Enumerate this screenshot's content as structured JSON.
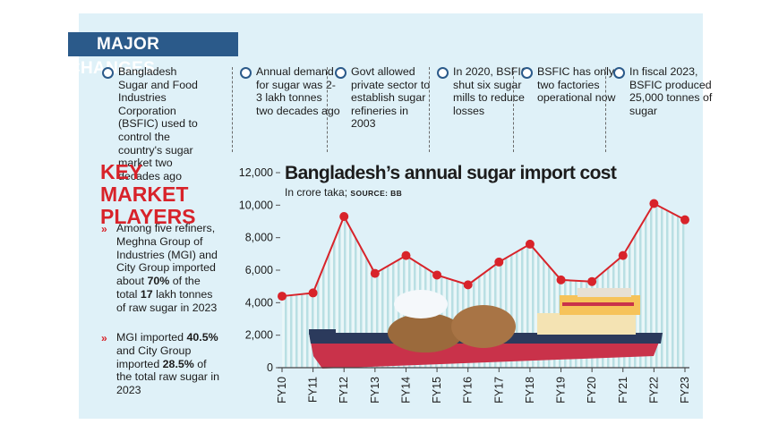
{
  "header": {
    "title": "MAJOR CHANGES"
  },
  "changes": [
    "Bangladesh Sugar and Food Industries Corporation (BSFIC) used to control the country's sugar market two decades ago",
    "Annual demand for sugar was 2-3 lakh tonnes two decades ago",
    "Govt allowed private sector to establish sugar refineries in 2003",
    "In 2020, BSFIC shut six sugar mills to reduce losses",
    "BSFIC has only two factories operational now",
    "In fiscal 2023, BSFIC produced 25,000 tonnes of sugar"
  ],
  "key_players": {
    "title": "KEY MARKET PLAYERS",
    "bullets": [
      [
        "Among five refiners, Meghna Group of Industries (MGI) and City Group imported about ",
        "70%",
        " of the total ",
        "17",
        " lakh tonnes of raw sugar in 2023"
      ],
      [
        "MGI imported ",
        "40.5%",
        " and City Group imported ",
        "28.5%",
        " of the total raw sugar in 2023"
      ]
    ]
  },
  "chart_data": {
    "type": "line",
    "title": "Bangladesh’s annual sugar import cost",
    "subtitle": "In crore taka;",
    "source": "SOURCE: BB",
    "categories": [
      "FY10",
      "FY11",
      "FY12",
      "FY13",
      "FY14",
      "FY15",
      "FY16",
      "FY17",
      "FY18",
      "FY19",
      "FY20",
      "FY21",
      "FY22",
      "FY23"
    ],
    "values": [
      4400,
      4600,
      9300,
      5800,
      6900,
      5700,
      5100,
      6500,
      7600,
      5400,
      5300,
      6900,
      10100,
      9100
    ],
    "color": "#d8232a",
    "ylim": [
      0,
      12000
    ],
    "yticks": [
      0,
      {
        "value": 2000,
        "label": "2,000"
      },
      {
        "value": 4000,
        "label": "4,000"
      },
      {
        "value": 6000,
        "label": "6,000"
      },
      {
        "value": 8000,
        "label": "8,000"
      },
      {
        "value": 10000,
        "label": "10,000"
      },
      {
        "value": 12000,
        "label": "12,000"
      }
    ]
  }
}
